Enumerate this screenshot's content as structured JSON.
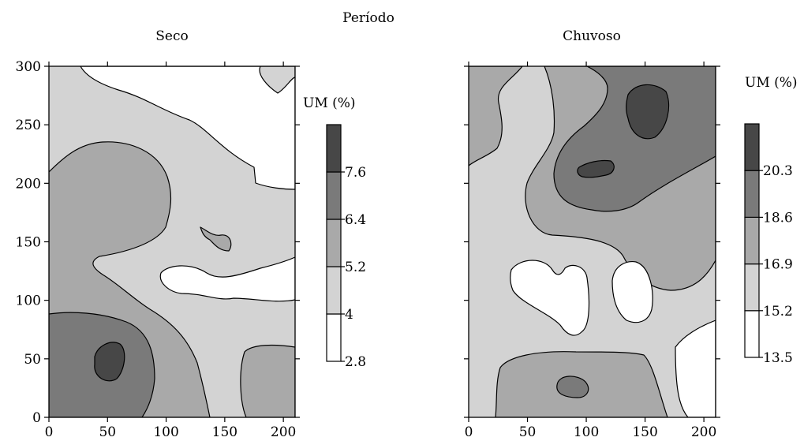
{
  "figure": {
    "supertitle": "Período"
  },
  "chart_data": [
    {
      "type": "heatmap",
      "title": "Seco",
      "xlabel": "",
      "ylabel": "",
      "xlim": [
        0,
        210
      ],
      "ylim": [
        0,
        300
      ],
      "x_ticks": [
        "0",
        "50",
        "100",
        "150",
        "200"
      ],
      "y_ticks": [
        "0",
        "50",
        "100",
        "150",
        "200",
        "250",
        "300"
      ],
      "colorbar": {
        "title": "UM (%)",
        "tick_labels": [
          "2.8",
          "4",
          "5.2",
          "6.4",
          "7.6"
        ],
        "levels": [
          2.8,
          4.0,
          5.2,
          6.4,
          7.6
        ],
        "fill_colors": [
          "#ffffff",
          "#d3d3d3",
          "#a9a9a9",
          "#7a7a7a",
          "#474747"
        ]
      }
    },
    {
      "type": "heatmap",
      "title": "Chuvoso",
      "xlabel": "",
      "ylabel": "",
      "xlim": [
        0,
        210
      ],
      "ylim": [
        0,
        300
      ],
      "x_ticks": [
        "0",
        "50",
        "100",
        "150",
        "200"
      ],
      "y_ticks": [],
      "colorbar": {
        "title": "UM (%)",
        "tick_labels": [
          "13.5",
          "15.2",
          "16.9",
          "18.6",
          "20.3"
        ],
        "levels": [
          13.5,
          15.2,
          16.9,
          18.6,
          20.3
        ],
        "fill_colors": [
          "#ffffff",
          "#d3d3d3",
          "#a9a9a9",
          "#7a7a7a",
          "#474747"
        ]
      }
    }
  ]
}
